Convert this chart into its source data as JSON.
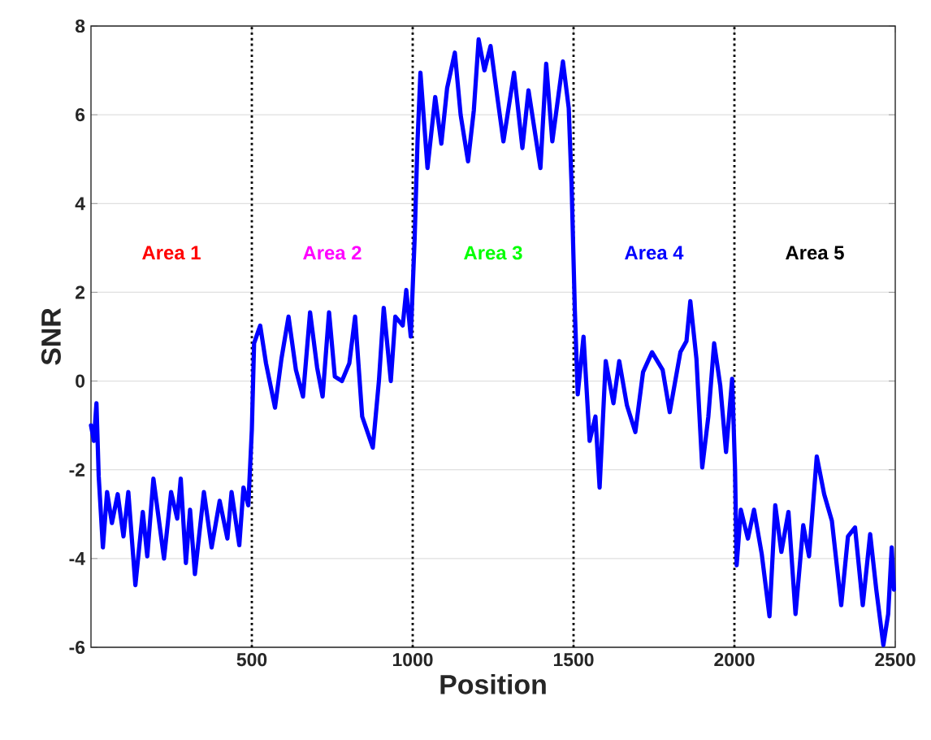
{
  "chart_data": {
    "type": "line",
    "xlabel": "Position",
    "ylabel": "SNR",
    "xlim": [
      0,
      2500
    ],
    "xticks": [
      500,
      1000,
      1500,
      2000,
      2500
    ],
    "ylim": [
      -6,
      8
    ],
    "yticks": [
      -6,
      -4,
      -2,
      0,
      2,
      4,
      6,
      8
    ],
    "grid": "y",
    "marker": "none",
    "line_style": "solid",
    "ref_lines": [
      {
        "axis": "x",
        "value": 500,
        "color": "#000000",
        "line_style": "dotted"
      },
      {
        "axis": "x",
        "value": 1000,
        "color": "#000000",
        "line_style": "dotted"
      },
      {
        "axis": "x",
        "value": 1500,
        "color": "#000000",
        "line_style": "dotted"
      },
      {
        "axis": "x",
        "value": 2000,
        "color": "#000000",
        "line_style": "dotted"
      }
    ],
    "annotations": [
      "Area 1",
      "Area 2",
      "Area 3",
      "Area 4",
      "Area 5"
    ],
    "series": [
      {
        "color": "#0000ff",
        "x": [
          0,
          9,
          17,
          24,
          37,
          50,
          65,
          83,
          101,
          116,
          138,
          161,
          175,
          194,
          227,
          249,
          268,
          279,
          295,
          308,
          323,
          351,
          375,
          400,
          424,
          437,
          461,
          474,
          489,
          500,
          507,
          526,
          544,
          572,
          592,
          614,
          637,
          659,
          681,
          703,
          720,
          740,
          758,
          780,
          803,
          821,
          843,
          876,
          895,
          910,
          932,
          946,
          969,
          980,
          994,
          1006,
          1015,
          1024,
          1046,
          1070,
          1089,
          1107,
          1131,
          1149,
          1172,
          1190,
          1205,
          1223,
          1242,
          1264,
          1282,
          1315,
          1341,
          1360,
          1397,
          1415,
          1434,
          1467,
          1485,
          1494,
          1504,
          1513,
          1531,
          1550,
          1568,
          1581,
          1600,
          1624,
          1642,
          1666,
          1692,
          1716,
          1744,
          1777,
          1799,
          1832,
          1851,
          1863,
          1882,
          1900,
          1919,
          1937,
          1956,
          1974,
          1993,
          2002,
          2007,
          2020,
          2042,
          2061,
          2085,
          2109,
          2127,
          2146,
          2168,
          2190,
          2214,
          2232,
          2256,
          2279,
          2303,
          2332,
          2353,
          2375,
          2399,
          2422,
          2441,
          2463,
          2478,
          2489,
          2496
        ],
        "values": [
          -1.0,
          -1.35,
          -0.5,
          -2.15,
          -3.75,
          -2.5,
          -3.2,
          -2.55,
          -3.5,
          -2.5,
          -4.6,
          -2.95,
          -3.95,
          -2.2,
          -4.0,
          -2.5,
          -3.1,
          -2.2,
          -4.1,
          -2.9,
          -4.35,
          -2.5,
          -3.75,
          -2.7,
          -3.55,
          -2.5,
          -3.7,
          -2.4,
          -2.8,
          -1.1,
          0.85,
          1.25,
          0.4,
          -0.6,
          0.5,
          1.45,
          0.25,
          -0.35,
          1.55,
          0.3,
          -0.35,
          1.55,
          0.1,
          0.0,
          0.4,
          1.45,
          -0.8,
          -1.5,
          0.0,
          1.65,
          0.0,
          1.45,
          1.25,
          2.05,
          1.0,
          3.2,
          5.4,
          6.95,
          4.8,
          6.4,
          5.35,
          6.6,
          7.4,
          6.0,
          4.95,
          6.1,
          7.7,
          7.0,
          7.55,
          6.35,
          5.4,
          6.95,
          5.25,
          6.55,
          4.8,
          7.15,
          5.4,
          7.2,
          6.15,
          4.4,
          1.6,
          -0.3,
          1.0,
          -1.35,
          -0.8,
          -2.4,
          0.45,
          -0.5,
          0.45,
          -0.55,
          -1.15,
          0.2,
          0.65,
          0.25,
          -0.7,
          0.65,
          0.9,
          1.8,
          0.5,
          -1.95,
          -0.8,
          0.85,
          -0.1,
          -1.6,
          0.05,
          -2.0,
          -4.15,
          -2.9,
          -3.55,
          -2.9,
          -3.9,
          -5.3,
          -2.8,
          -3.85,
          -2.95,
          -5.25,
          -3.25,
          -3.95,
          -1.7,
          -2.55,
          -3.15,
          -5.05,
          -3.5,
          -3.3,
          -5.05,
          -3.45,
          -4.7,
          -5.95,
          -5.25,
          -3.75,
          -4.7
        ]
      }
    ]
  }
}
